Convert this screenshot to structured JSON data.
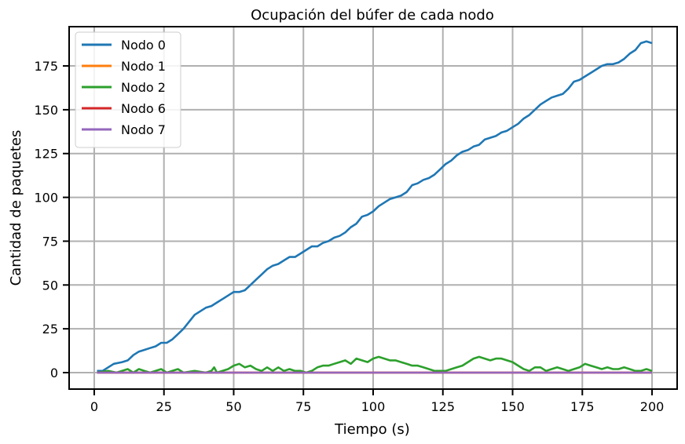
{
  "chart_data": {
    "type": "line",
    "title": "Ocupación del búfer de cada nodo",
    "xlabel": "Tiempo (s)",
    "ylabel": "Cantidad de paquetes",
    "xlim": [
      -9,
      209
    ],
    "ylim": [
      -9.4,
      197.4
    ],
    "xticks": [
      0,
      25,
      50,
      75,
      100,
      125,
      150,
      175,
      200
    ],
    "yticks": [
      0,
      25,
      50,
      75,
      100,
      125,
      150,
      175
    ],
    "grid": true,
    "legend_position": "top-left",
    "series": [
      {
        "name": "Nodo 0",
        "color": "#1f77b4",
        "points": [
          [
            1,
            1
          ],
          [
            3,
            1
          ],
          [
            5,
            3
          ],
          [
            7,
            5
          ],
          [
            10,
            6
          ],
          [
            12,
            7
          ],
          [
            14,
            10
          ],
          [
            16,
            12
          ],
          [
            18,
            13
          ],
          [
            20,
            14
          ],
          [
            22,
            15
          ],
          [
            24,
            17
          ],
          [
            26,
            17
          ],
          [
            28,
            19
          ],
          [
            30,
            22
          ],
          [
            32,
            25
          ],
          [
            34,
            29
          ],
          [
            36,
            33
          ],
          [
            38,
            35
          ],
          [
            40,
            37
          ],
          [
            42,
            38
          ],
          [
            44,
            40
          ],
          [
            46,
            42
          ],
          [
            48,
            44
          ],
          [
            50,
            46
          ],
          [
            52,
            46
          ],
          [
            54,
            47
          ],
          [
            56,
            50
          ],
          [
            58,
            53
          ],
          [
            60,
            56
          ],
          [
            62,
            59
          ],
          [
            64,
            61
          ],
          [
            66,
            62
          ],
          [
            68,
            64
          ],
          [
            70,
            66
          ],
          [
            72,
            66
          ],
          [
            74,
            68
          ],
          [
            76,
            70
          ],
          [
            78,
            72
          ],
          [
            80,
            72
          ],
          [
            82,
            74
          ],
          [
            84,
            75
          ],
          [
            86,
            77
          ],
          [
            88,
            78
          ],
          [
            90,
            80
          ],
          [
            92,
            83
          ],
          [
            94,
            85
          ],
          [
            96,
            89
          ],
          [
            98,
            90
          ],
          [
            100,
            92
          ],
          [
            102,
            95
          ],
          [
            104,
            97
          ],
          [
            106,
            99
          ],
          [
            108,
            100
          ],
          [
            110,
            101
          ],
          [
            112,
            103
          ],
          [
            114,
            107
          ],
          [
            116,
            108
          ],
          [
            118,
            110
          ],
          [
            120,
            111
          ],
          [
            122,
            113
          ],
          [
            124,
            116
          ],
          [
            126,
            119
          ],
          [
            128,
            121
          ],
          [
            130,
            124
          ],
          [
            132,
            126
          ],
          [
            134,
            127
          ],
          [
            136,
            129
          ],
          [
            138,
            130
          ],
          [
            140,
            133
          ],
          [
            142,
            134
          ],
          [
            144,
            135
          ],
          [
            146,
            137
          ],
          [
            148,
            138
          ],
          [
            150,
            140
          ],
          [
            152,
            142
          ],
          [
            154,
            145
          ],
          [
            156,
            147
          ],
          [
            158,
            150
          ],
          [
            160,
            153
          ],
          [
            162,
            155
          ],
          [
            164,
            157
          ],
          [
            166,
            158
          ],
          [
            168,
            159
          ],
          [
            170,
            162
          ],
          [
            172,
            166
          ],
          [
            174,
            167
          ],
          [
            176,
            169
          ],
          [
            178,
            171
          ],
          [
            180,
            173
          ],
          [
            182,
            175
          ],
          [
            184,
            176
          ],
          [
            186,
            176
          ],
          [
            188,
            177
          ],
          [
            190,
            179
          ],
          [
            192,
            182
          ],
          [
            194,
            184
          ],
          [
            196,
            188
          ],
          [
            198,
            189
          ],
          [
            200,
            188
          ]
        ]
      },
      {
        "name": "Nodo 1",
        "color": "#ff7f0e",
        "points": [
          [
            1,
            0
          ],
          [
            200,
            0
          ]
        ]
      },
      {
        "name": "Nodo 2",
        "color": "#2ca02c",
        "points": [
          [
            1,
            0
          ],
          [
            5,
            1
          ],
          [
            8,
            0
          ],
          [
            10,
            1
          ],
          [
            12,
            2
          ],
          [
            14,
            0
          ],
          [
            16,
            2
          ],
          [
            18,
            1
          ],
          [
            20,
            0
          ],
          [
            22,
            1
          ],
          [
            24,
            2
          ],
          [
            26,
            0
          ],
          [
            28,
            1
          ],
          [
            30,
            2
          ],
          [
            32,
            0
          ],
          [
            36,
            1
          ],
          [
            40,
            0
          ],
          [
            42,
            1
          ],
          [
            43,
            3
          ],
          [
            44,
            0
          ],
          [
            46,
            1
          ],
          [
            48,
            2
          ],
          [
            50,
            4
          ],
          [
            52,
            5
          ],
          [
            54,
            3
          ],
          [
            56,
            4
          ],
          [
            58,
            2
          ],
          [
            60,
            1
          ],
          [
            62,
            3
          ],
          [
            64,
            1
          ],
          [
            66,
            3
          ],
          [
            68,
            1
          ],
          [
            70,
            2
          ],
          [
            72,
            1
          ],
          [
            74,
            1
          ],
          [
            76,
            0
          ],
          [
            78,
            1
          ],
          [
            80,
            3
          ],
          [
            82,
            4
          ],
          [
            84,
            4
          ],
          [
            86,
            5
          ],
          [
            88,
            6
          ],
          [
            90,
            7
          ],
          [
            92,
            5
          ],
          [
            94,
            8
          ],
          [
            96,
            7
          ],
          [
            98,
            6
          ],
          [
            100,
            8
          ],
          [
            102,
            9
          ],
          [
            104,
            8
          ],
          [
            106,
            7
          ],
          [
            108,
            7
          ],
          [
            110,
            6
          ],
          [
            112,
            5
          ],
          [
            114,
            4
          ],
          [
            116,
            4
          ],
          [
            118,
            3
          ],
          [
            120,
            2
          ],
          [
            122,
            1
          ],
          [
            124,
            1
          ],
          [
            126,
            1
          ],
          [
            128,
            2
          ],
          [
            130,
            3
          ],
          [
            132,
            4
          ],
          [
            134,
            6
          ],
          [
            136,
            8
          ],
          [
            138,
            9
          ],
          [
            140,
            8
          ],
          [
            142,
            7
          ],
          [
            144,
            8
          ],
          [
            146,
            8
          ],
          [
            148,
            7
          ],
          [
            150,
            6
          ],
          [
            152,
            4
          ],
          [
            154,
            2
          ],
          [
            156,
            1
          ],
          [
            158,
            3
          ],
          [
            160,
            3
          ],
          [
            162,
            1
          ],
          [
            164,
            2
          ],
          [
            166,
            3
          ],
          [
            168,
            2
          ],
          [
            170,
            1
          ],
          [
            172,
            2
          ],
          [
            174,
            3
          ],
          [
            176,
            5
          ],
          [
            178,
            4
          ],
          [
            180,
            3
          ],
          [
            182,
            2
          ],
          [
            184,
            3
          ],
          [
            186,
            2
          ],
          [
            188,
            2
          ],
          [
            190,
            3
          ],
          [
            192,
            2
          ],
          [
            194,
            1
          ],
          [
            196,
            1
          ],
          [
            198,
            2
          ],
          [
            200,
            1
          ]
        ]
      },
      {
        "name": "Nodo 6",
        "color": "#d62728",
        "points": [
          [
            1,
            0
          ],
          [
            200,
            0
          ]
        ]
      },
      {
        "name": "Nodo 7",
        "color": "#9467bd",
        "points": [
          [
            1,
            0
          ],
          [
            200,
            0
          ]
        ]
      }
    ]
  }
}
